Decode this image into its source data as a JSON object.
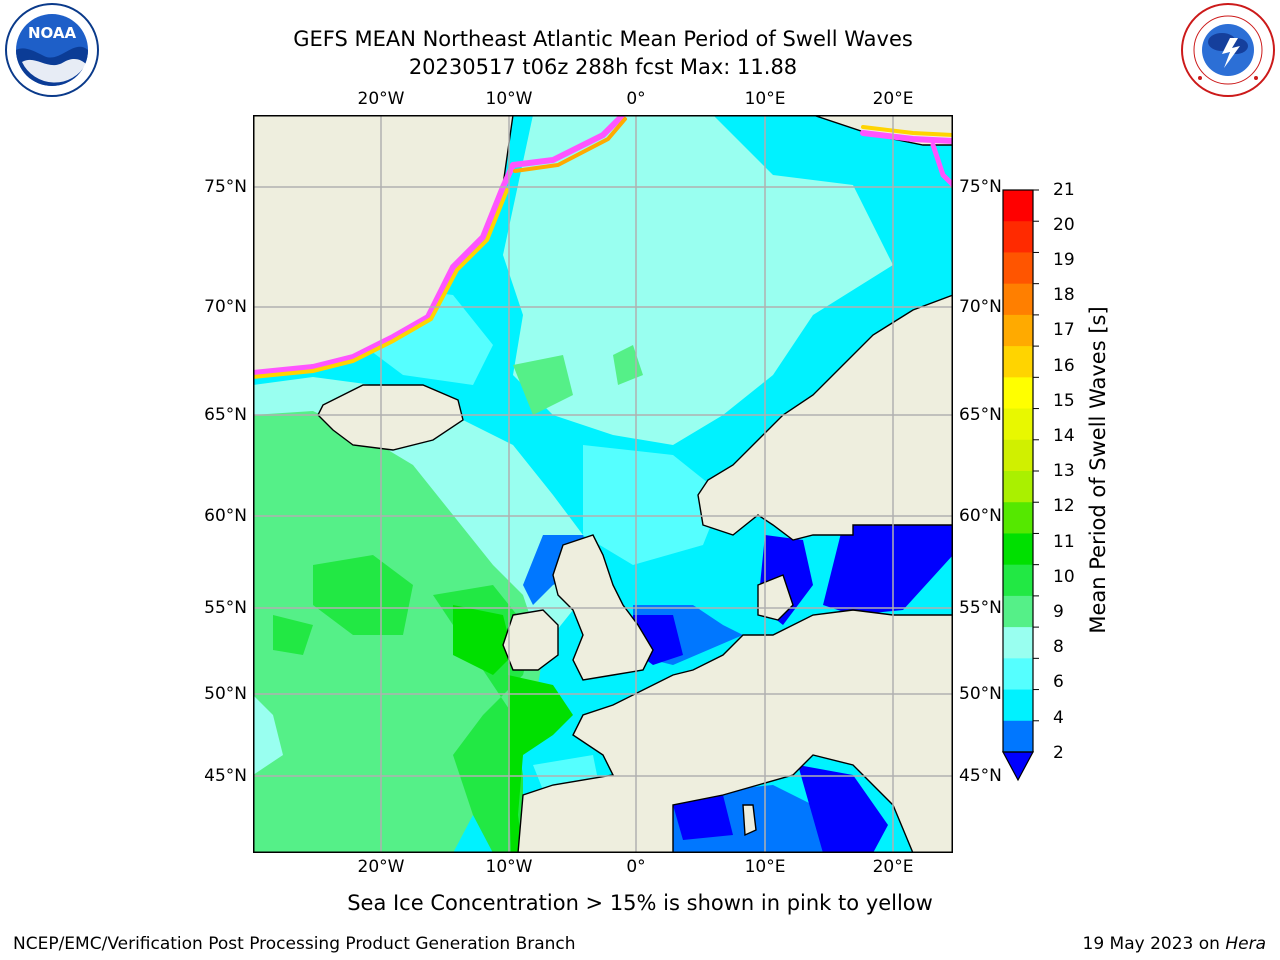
{
  "title_line1": "GEFS MEAN Northeast Atlantic Mean Period of Swell Waves",
  "title_line2": "20230517 t06z 288h fcst   Max: 11.88",
  "note": "Sea Ice Concentration > 15% is shown in pink to yellow",
  "footer_left": "NCEP/EMC/Verification Post Processing Product Generation Branch",
  "footer_date": "19 May 2023 on ",
  "footer_host": "Hera",
  "logos": {
    "left": {
      "name": "noaa-logo",
      "text": "NOAA",
      "ring_text": "NATIONAL OCEANIC AND ATMOSPHERIC ADMINISTRATION · U.S. DEPARTMENT OF COMMERCE"
    },
    "right": {
      "name": "nws-logo",
      "ring_text": "NATIONAL WEATHER SERVICE"
    }
  },
  "map": {
    "lon_labels_top": [
      "20°W",
      "10°W",
      "0°",
      "10°E",
      "20°E"
    ],
    "lon_labels_bottom": [
      "20°W",
      "10°W",
      "0°",
      "10°E",
      "20°E"
    ],
    "lat_labels_left": [
      "75°N",
      "70°N",
      "65°N",
      "60°N",
      "55°N",
      "50°N",
      "45°N"
    ],
    "lat_labels_right": [
      "75°N",
      "70°N",
      "65°N",
      "60°N",
      "55°N",
      "50°N",
      "45°N"
    ],
    "land_color": "#eeeede",
    "grid_color": "#b0b0b0"
  },
  "colorbar": {
    "label": "Mean Period of Swell Waves [s]",
    "ticks": [
      "21",
      "20",
      "19",
      "18",
      "17",
      "16",
      "15",
      "14",
      "13",
      "12",
      "11",
      "10",
      "9",
      "8",
      "6",
      "4",
      "2"
    ],
    "colors_top_to_bottom": [
      "#ff0000",
      "#ff2a00",
      "#ff5500",
      "#ff7f00",
      "#ffaa00",
      "#ffd400",
      "#ffff00",
      "#e8f800",
      "#d0f000",
      "#aaf000",
      "#55e800",
      "#00e000",
      "#22e844",
      "#55f088",
      "#99fff0",
      "#55ffff",
      "#00f2ff",
      "#0077ff"
    ],
    "under_color": "#0000ff"
  }
}
